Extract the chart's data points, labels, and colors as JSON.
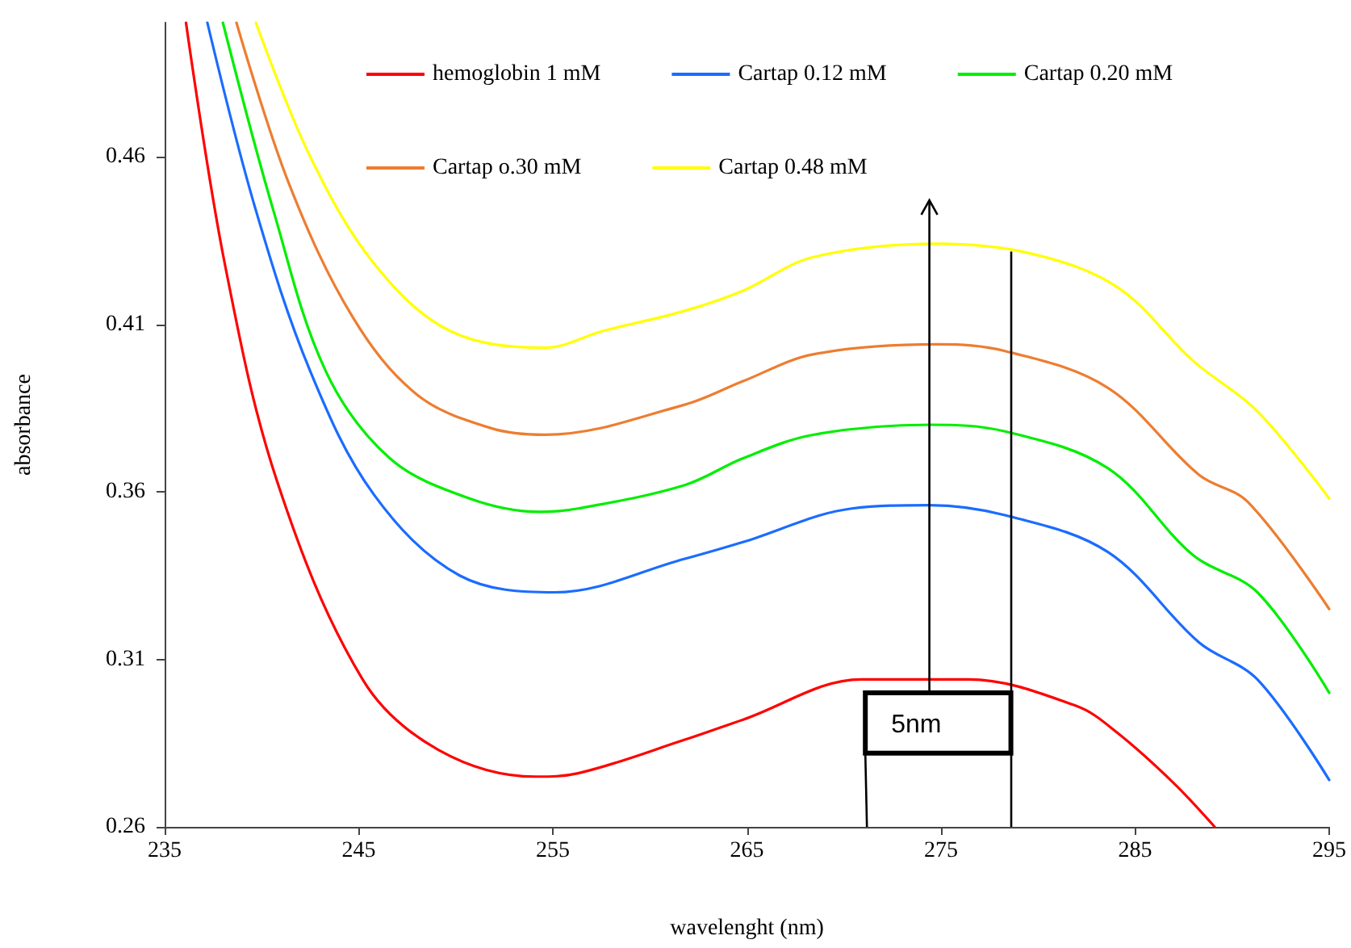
{
  "chart_data": {
    "type": "line",
    "xlabel": "wavelenght (nm)",
    "ylabel": "absorbance",
    "xlim": [
      235,
      295
    ],
    "xticks": [
      235,
      245,
      255,
      265,
      275,
      285,
      295
    ],
    "ylim": [
      0.26,
      0.5
    ],
    "yticks": [
      0.26,
      0.31,
      0.36,
      0.41,
      0.46
    ],
    "grid": false,
    "legend": "top",
    "marker": "none",
    "line_style": "solid",
    "annotations": [
      "5nm"
    ],
    "ref_lines": [
      {
        "axis": "x",
        "value": 278.6,
        "color": "#000000"
      }
    ],
    "series": [
      {
        "name": "hemoglobin 1 mM",
        "color": "#ff0000",
        "x": [
          236.1,
          238.1,
          240.8,
          245.2,
          249.1,
          254.1,
          256.3,
          261.8,
          264.8,
          270.9,
          276.4,
          282,
          284.1,
          287,
          289.1
        ],
        "values": [
          0.5,
          0.428,
          0.363,
          0.304,
          0.283,
          0.275,
          0.276,
          0.286,
          0.292,
          0.304,
          0.304,
          0.296,
          0.288,
          0.273,
          0.26
        ]
      },
      {
        "name": "Cartap 0.12 mM",
        "color": "#1a6cff",
        "x": [
          237.2,
          239.7,
          242.5,
          245.8,
          250.2,
          255.1,
          261.8,
          264.8,
          270.4,
          274.4,
          278.3,
          283.6,
          288.3,
          291.3,
          295
        ],
        "values": [
          0.5,
          0.444,
          0.396,
          0.359,
          0.335,
          0.33,
          0.34,
          0.345,
          0.355,
          0.356,
          0.353,
          0.342,
          0.315,
          0.304,
          0.274
        ]
      },
      {
        "name": "Cartap 0.20 mM",
        "color": "#00ee00",
        "x": [
          238,
          240.6,
          243.3,
          246.6,
          250.7,
          254.3,
          256.3,
          261.8,
          264.8,
          268.4,
          274.4,
          278.3,
          283.6,
          288,
          291.3,
          295
        ],
        "values": [
          0.5,
          0.444,
          0.396,
          0.37,
          0.358,
          0.354,
          0.355,
          0.362,
          0.37,
          0.377,
          0.38,
          0.378,
          0.367,
          0.341,
          0.33,
          0.3
        ]
      },
      {
        "name": "Cartap o.30 mM",
        "color": "#ed7d31",
        "x": [
          238.7,
          241.4,
          244.7,
          248,
          251.8,
          254.6,
          261.8,
          264.8,
          268.4,
          274.8,
          278.3,
          283.6,
          288.3,
          290.8,
          295
        ],
        "values": [
          0.5,
          0.452,
          0.412,
          0.389,
          0.379,
          0.377,
          0.386,
          0.393,
          0.401,
          0.404,
          0.402,
          0.391,
          0.365,
          0.357,
          0.325
        ]
      },
      {
        "name": "Cartap 0.48 mM",
        "color": "#ffff00",
        "x": [
          239.7,
          242.5,
          245.8,
          249.7,
          254.6,
          257.6,
          261.8,
          264.8,
          268.4,
          274.8,
          279.7,
          284.1,
          288,
          291.3,
          295
        ],
        "values": [
          0.5,
          0.46,
          0.428,
          0.408,
          0.403,
          0.408,
          0.414,
          0.42,
          0.43,
          0.434,
          0.431,
          0.421,
          0.399,
          0.384,
          0.358
        ]
      }
    ]
  }
}
